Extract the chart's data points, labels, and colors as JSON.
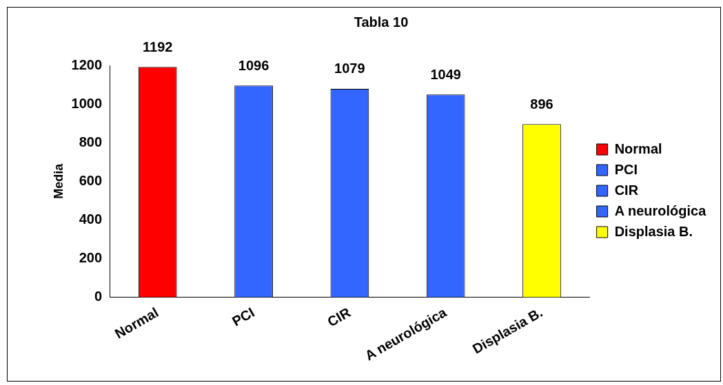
{
  "chart_data": {
    "type": "bar",
    "title": "Tabla 10",
    "ylabel": "Media",
    "categories": [
      "Normal",
      "PCI",
      "CIR",
      "A neurológica",
      "Displasia B."
    ],
    "series": [
      {
        "name": "Normal",
        "color": "#ff0000",
        "values": [
          1192,
          null,
          null,
          null,
          null
        ]
      },
      {
        "name": "PCI",
        "color": "#3366ff",
        "values": [
          null,
          1096,
          null,
          null,
          null
        ]
      },
      {
        "name": "CIR",
        "color": "#3366ff",
        "values": [
          null,
          null,
          1079,
          null,
          null
        ]
      },
      {
        "name": "A neurológica",
        "color": "#3366ff",
        "values": [
          null,
          null,
          null,
          1049,
          null
        ]
      },
      {
        "name": "Displasia B.",
        "color": "#ffff00",
        "values": [
          null,
          null,
          null,
          null,
          896
        ]
      }
    ],
    "ylim": [
      0,
      1200
    ],
    "yticks": [
      0,
      200,
      400,
      600,
      800,
      1000,
      1200
    ],
    "grid": false,
    "legend": "right",
    "data_labels": true
  }
}
